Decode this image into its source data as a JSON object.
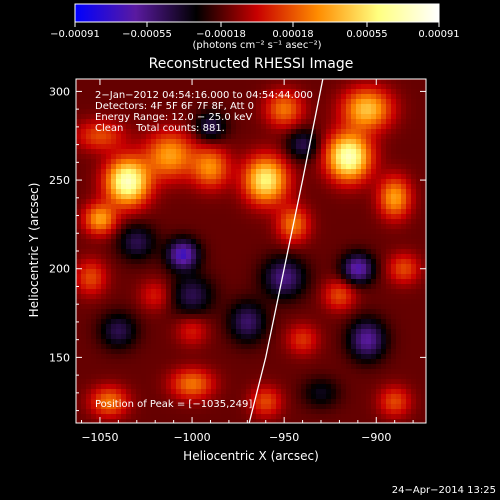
{
  "chart_data": {
    "type": "heatmap",
    "title": "Reconstructed RHESSI Image",
    "xlabel": "Heliocentric X (arcsec)",
    "ylabel": "Heliocentric Y (arcsec)",
    "xlim": [
      -1063,
      -873
    ],
    "ylim": [
      113,
      307
    ],
    "xticks": [
      -1050,
      -1000,
      -950,
      -900
    ],
    "xtick_labels": [
      "−1050",
      "−1000",
      "−950",
      "−900"
    ],
    "yticks": [
      150,
      200,
      250,
      300
    ],
    "ytick_labels": [
      "150",
      "200",
      "250",
      "300"
    ],
    "colorbar": {
      "range": [
        -0.00091,
        0.00091
      ],
      "tick_values": [
        -0.00091,
        -0.00055,
        -0.00018,
        0.00018,
        0.00055,
        0.00091
      ],
      "tick_labels": [
        "−0.00091",
        "−0.00055",
        "−0.00018",
        "0.00018",
        "0.00055",
        "0.00091"
      ],
      "units": "(photons cm⁻² s⁻¹ asec⁻²)",
      "colors": [
        "#0000ff",
        "#5a1aa0",
        "#000000",
        "#c80000",
        "#ff8c00",
        "#ffff80",
        "#ffffff"
      ]
    },
    "annotations": [
      "2−Jan−2012 04:54:16.000 to 04:54:44.000",
      "Detectors: 4F 5F 6F 7F 8F, Att 0",
      "Energy Range: 12.0 − 25.0 keV",
      "Clean    Total counts: 881."
    ],
    "peak_label": "Position of Peak = [−1035,249]",
    "sources": [
      {
        "x": -1035,
        "y": 249,
        "amp": 0.00091,
        "sx": 8,
        "sy": 9
      },
      {
        "x": -1012,
        "y": 264,
        "amp": 0.0005,
        "sx": 9,
        "sy": 9
      },
      {
        "x": -990,
        "y": 257,
        "amp": 0.00045,
        "sx": 7,
        "sy": 8
      },
      {
        "x": -1050,
        "y": 228,
        "amp": 0.0005,
        "sx": 6,
        "sy": 6
      },
      {
        "x": -1050,
        "y": 275,
        "amp": 0.0003,
        "sx": 9,
        "sy": 6
      },
      {
        "x": -1055,
        "y": 195,
        "amp": 0.0003,
        "sx": 6,
        "sy": 7
      },
      {
        "x": -1045,
        "y": 125,
        "amp": 0.0004,
        "sx": 7,
        "sy": 6
      },
      {
        "x": -1000,
        "y": 135,
        "amp": 0.0004,
        "sx": 8,
        "sy": 6
      },
      {
        "x": -1020,
        "y": 185,
        "amp": 0.0002,
        "sx": 6,
        "sy": 6
      },
      {
        "x": -1000,
        "y": 165,
        "amp": 0.0002,
        "sx": 6,
        "sy": 6
      },
      {
        "x": -960,
        "y": 250,
        "amp": 0.00075,
        "sx": 8,
        "sy": 9
      },
      {
        "x": -945,
        "y": 225,
        "amp": 0.0004,
        "sx": 6,
        "sy": 7
      },
      {
        "x": -950,
        "y": 290,
        "amp": 0.0004,
        "sx": 7,
        "sy": 7
      },
      {
        "x": -915,
        "y": 263,
        "amp": 0.0009,
        "sx": 8,
        "sy": 9
      },
      {
        "x": -905,
        "y": 290,
        "amp": 0.0006,
        "sx": 9,
        "sy": 8
      },
      {
        "x": -890,
        "y": 240,
        "amp": 0.0005,
        "sx": 6,
        "sy": 8
      },
      {
        "x": -885,
        "y": 200,
        "amp": 0.0003,
        "sx": 6,
        "sy": 6
      },
      {
        "x": -920,
        "y": 185,
        "amp": 0.0003,
        "sx": 6,
        "sy": 6
      },
      {
        "x": -940,
        "y": 160,
        "amp": 0.00025,
        "sx": 6,
        "sy": 6
      },
      {
        "x": -960,
        "y": 125,
        "amp": 0.0003,
        "sx": 6,
        "sy": 6
      },
      {
        "x": -890,
        "y": 125,
        "amp": 0.0003,
        "sx": 6,
        "sy": 6
      },
      {
        "x": -1005,
        "y": 208,
        "amp": -0.00055,
        "sx": 6,
        "sy": 6
      },
      {
        "x": -950,
        "y": 195,
        "amp": -0.0004,
        "sx": 8,
        "sy": 8
      },
      {
        "x": -910,
        "y": 200,
        "amp": -0.0005,
        "sx": 6,
        "sy": 6
      },
      {
        "x": -905,
        "y": 160,
        "amp": -0.00045,
        "sx": 7,
        "sy": 8
      },
      {
        "x": -970,
        "y": 170,
        "amp": -0.00035,
        "sx": 7,
        "sy": 8
      },
      {
        "x": -1030,
        "y": 215,
        "amp": -0.0003,
        "sx": 7,
        "sy": 7
      },
      {
        "x": -990,
        "y": 280,
        "amp": -0.0003,
        "sx": 6,
        "sy": 6
      },
      {
        "x": -1000,
        "y": 185,
        "amp": -0.0003,
        "sx": 8,
        "sy": 8
      },
      {
        "x": -940,
        "y": 270,
        "amp": -0.0003,
        "sx": 6,
        "sy": 6
      },
      {
        "x": -930,
        "y": 130,
        "amp": -0.0002,
        "sx": 7,
        "sy": 6
      },
      {
        "x": -1040,
        "y": 165,
        "amp": -0.0003,
        "sx": 7,
        "sy": 7
      }
    ],
    "limb_points": [
      [
        -969,
        113
      ],
      [
        -960,
        150
      ],
      [
        -950,
        200
      ],
      [
        -940,
        250
      ],
      [
        -929,
        307
      ]
    ]
  },
  "timestamp": "24−Apr−2014 13:25"
}
